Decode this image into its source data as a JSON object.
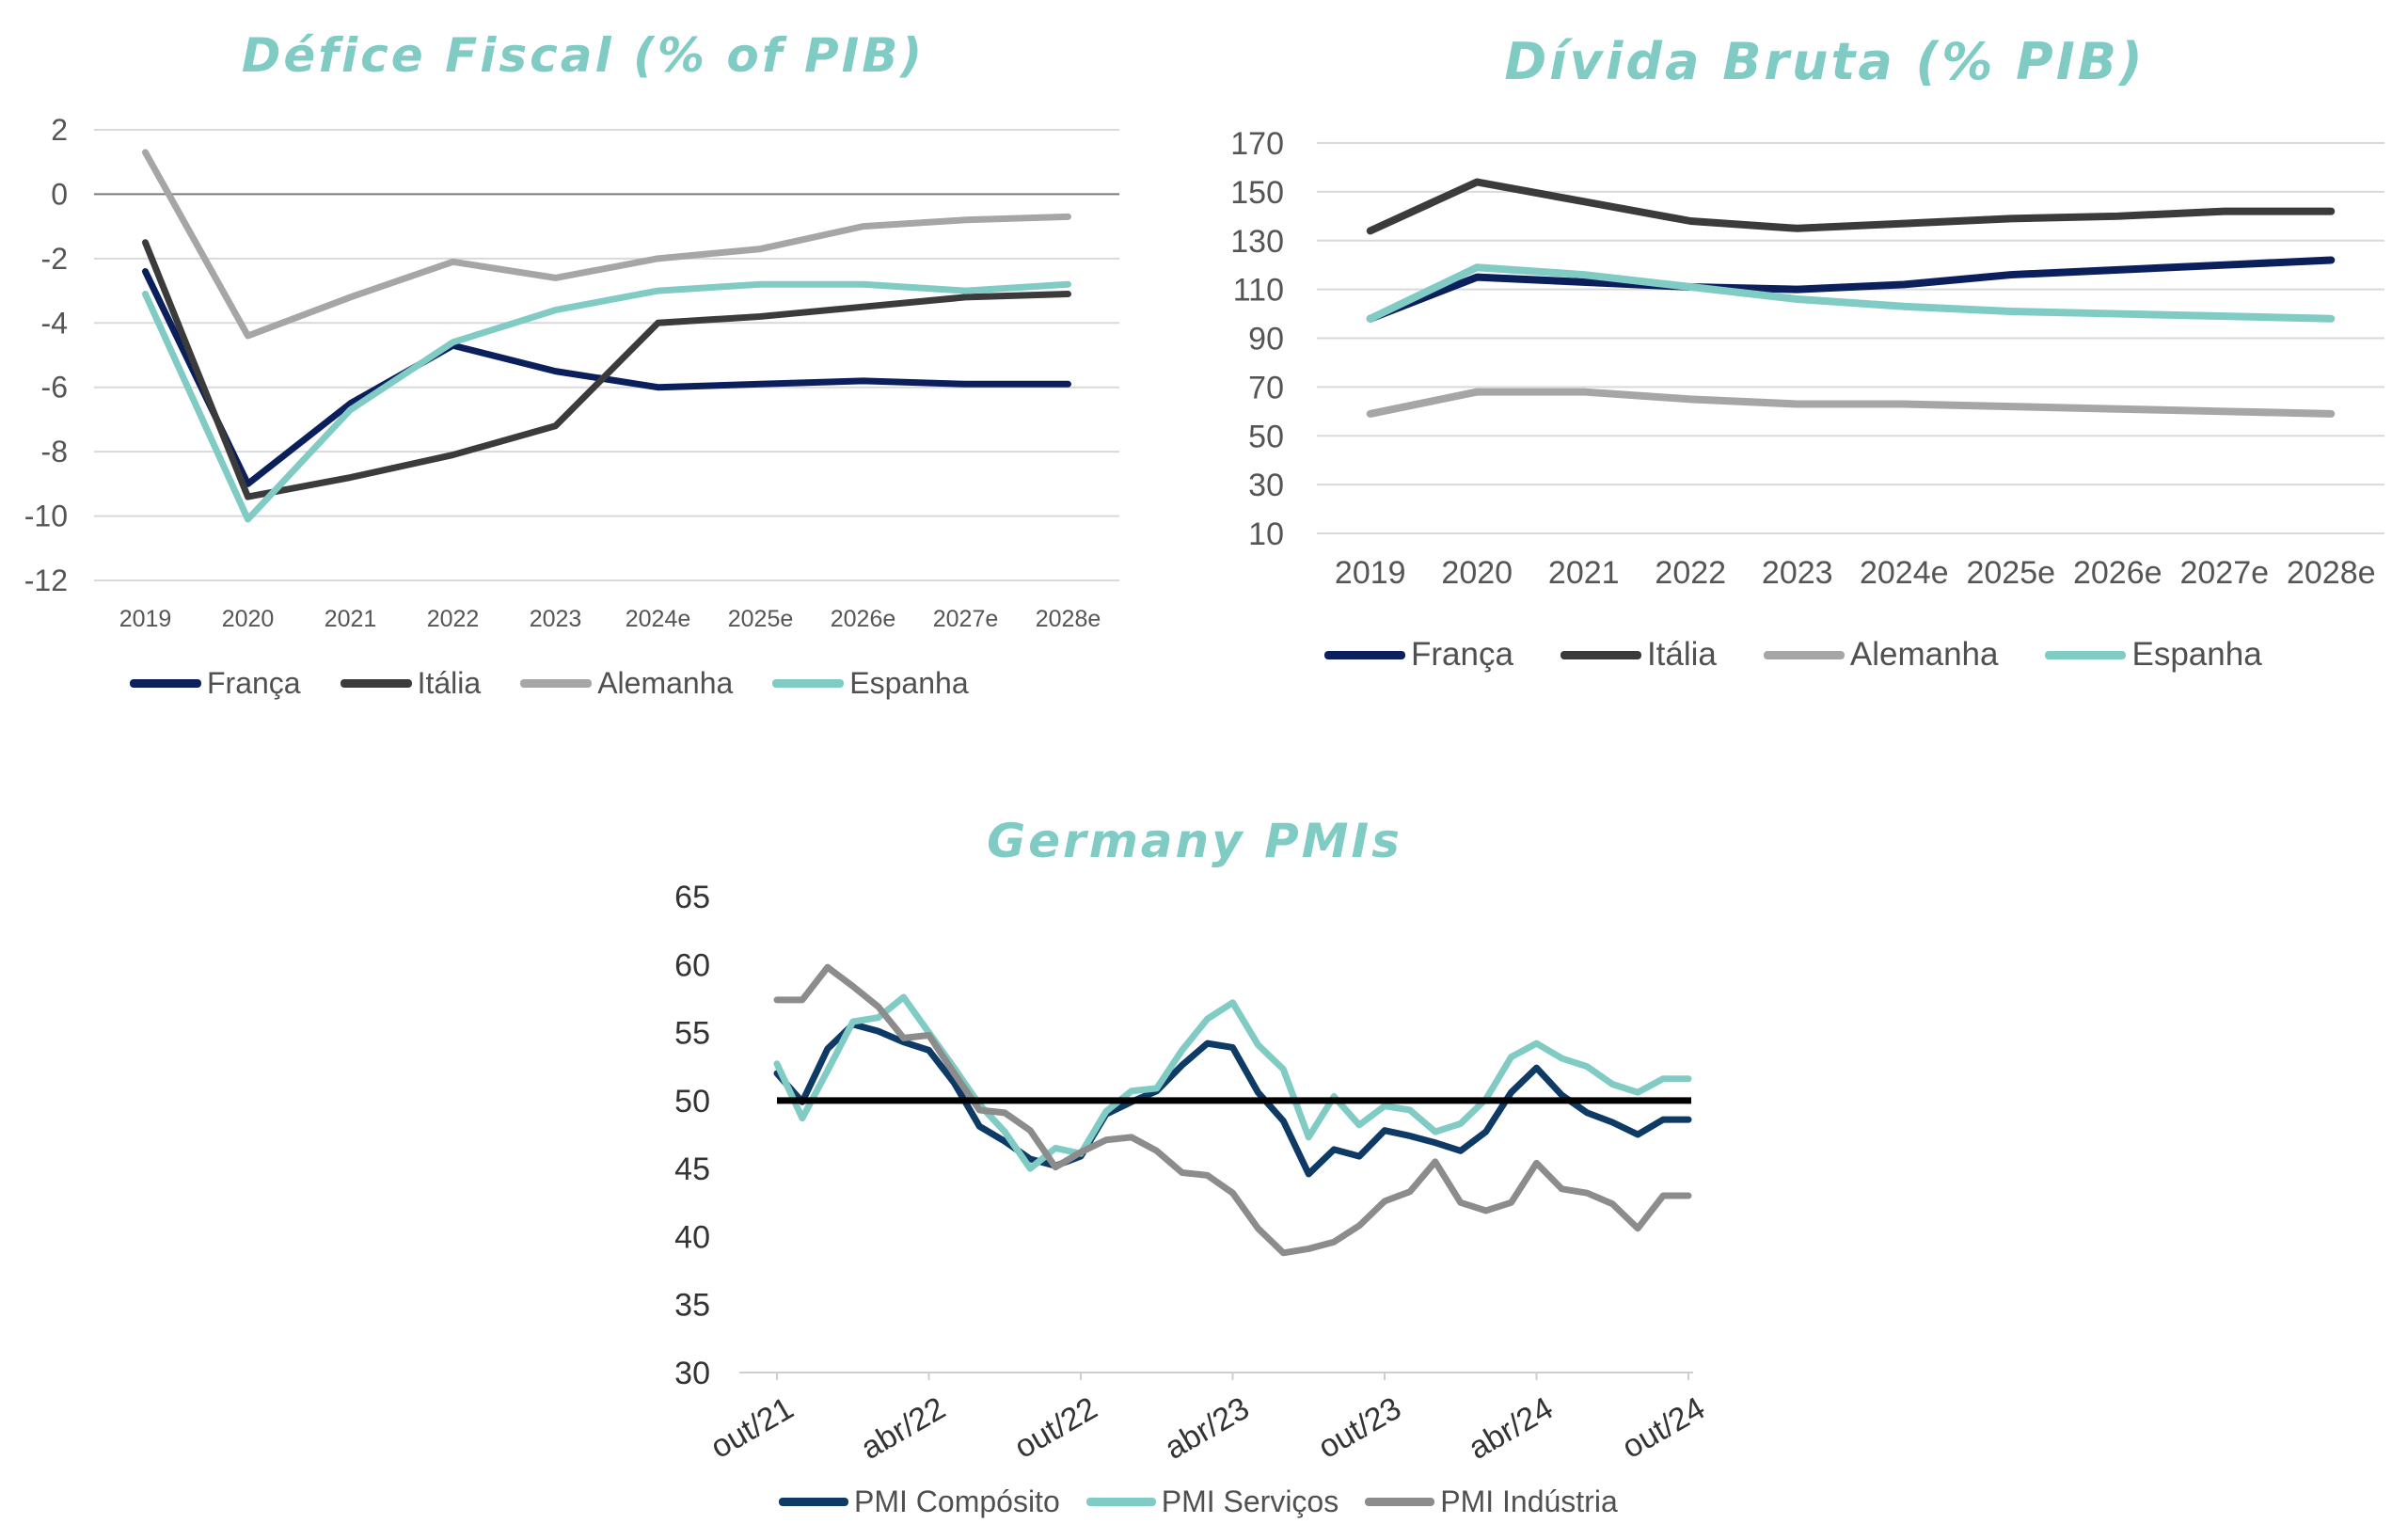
{
  "chart_data": [
    {
      "type": "line",
      "title": "Défice Fiscal (% of PIB)",
      "categories": [
        "2019",
        "2020",
        "2021",
        "2022",
        "2023",
        "2024e",
        "2025e",
        "2026e",
        "2027e",
        "2028e"
      ],
      "ylim": [
        -12,
        2
      ],
      "yticks": [
        2,
        0,
        -2,
        -4,
        -6,
        -8,
        -10,
        -12
      ],
      "grid": true,
      "legend_position": "bottom",
      "series": [
        {
          "name": "França",
          "color": "#0b1f5c",
          "values": [
            -2.4,
            -9.0,
            -6.5,
            -4.7,
            -5.5,
            -6.0,
            -5.9,
            -5.8,
            -5.9,
            -5.9
          ]
        },
        {
          "name": "Itália",
          "color": "#3b3b3b",
          "values": [
            -1.5,
            -9.4,
            -8.8,
            -8.1,
            -7.2,
            -4.0,
            -3.8,
            -3.5,
            -3.2,
            -3.1
          ]
        },
        {
          "name": "Alemanha",
          "color": "#a6a6a6",
          "values": [
            1.3,
            -4.4,
            -3.2,
            -2.1,
            -2.6,
            -2.0,
            -1.7,
            -1.0,
            -0.8,
            -0.7
          ]
        },
        {
          "name": "Espanha",
          "color": "#80cbc4",
          "values": [
            -3.1,
            -10.1,
            -6.7,
            -4.6,
            -3.6,
            -3.0,
            -2.8,
            -2.8,
            -3.0,
            -2.8
          ]
        }
      ]
    },
    {
      "type": "line",
      "title": "Dívida Bruta (% PIB)",
      "categories": [
        "2019",
        "2020",
        "2021",
        "2022",
        "2023",
        "2024e",
        "2025e",
        "2026e",
        "2027e",
        "2028e"
      ],
      "ylim": [
        10,
        170
      ],
      "yticks": [
        170,
        150,
        130,
        110,
        90,
        70,
        50,
        30,
        10
      ],
      "grid": true,
      "legend_position": "bottom",
      "series": [
        {
          "name": "França",
          "color": "#0b1f5c",
          "values": [
            98,
            115,
            113,
            111,
            110,
            112,
            116,
            118,
            120,
            122
          ]
        },
        {
          "name": "Itália",
          "color": "#3b3b3b",
          "values": [
            134,
            154,
            146,
            138,
            135,
            137,
            139,
            140,
            142,
            142
          ]
        },
        {
          "name": "Alemanha",
          "color": "#a6a6a6",
          "values": [
            59,
            68,
            68,
            65,
            63,
            63,
            62,
            61,
            60,
            59
          ]
        },
        {
          "name": "Espanha",
          "color": "#80cbc4",
          "values": [
            98,
            119,
            116,
            111,
            106,
            103,
            101,
            100,
            99,
            98
          ]
        }
      ]
    },
    {
      "type": "line",
      "title": "Germany PMIs",
      "x": [
        "out/21",
        "nov/21",
        "dez/21",
        "jan/22",
        "fev/22",
        "mar/22",
        "abr/22",
        "mai/22",
        "jun/22",
        "jul/22",
        "ago/22",
        "set/22",
        "out/22",
        "nov/22",
        "dez/22",
        "jan/23",
        "fev/23",
        "mar/23",
        "abr/23",
        "mai/23",
        "jun/23",
        "jul/23",
        "ago/23",
        "set/23",
        "out/23",
        "nov/23",
        "dez/23",
        "jan/24",
        "fev/24",
        "mar/24",
        "abr/24",
        "mai/24",
        "jun/24",
        "jul/24",
        "ago/24",
        "set/24",
        "out/24"
      ],
      "xticks": [
        "out/21",
        "abr/22",
        "out/22",
        "abr/23",
        "out/23",
        "abr/24",
        "out/24"
      ],
      "ylim": [
        30,
        65
      ],
      "yticks": [
        65,
        60,
        55,
        50,
        45,
        40,
        35,
        30
      ],
      "grid": false,
      "reference_line": 50,
      "legend_position": "bottom",
      "series": [
        {
          "name": "PMI Compósito",
          "color": "#0d3b66",
          "values": [
            52.0,
            49.9,
            53.8,
            55.6,
            55.1,
            54.3,
            53.7,
            51.3,
            48.1,
            47.0,
            45.7,
            45.2,
            45.9,
            49.0,
            49.9,
            50.7,
            52.6,
            54.2,
            53.9,
            50.6,
            48.5,
            44.6,
            46.4,
            45.9,
            47.8,
            47.4,
            46.9,
            46.3,
            47.7,
            50.6,
            52.4,
            50.4,
            49.1,
            48.4,
            47.5,
            48.6,
            48.6
          ]
        },
        {
          "name": "PMI Serviços",
          "color": "#80cbc4",
          "values": [
            52.7,
            48.7,
            52.2,
            55.8,
            56.1,
            57.6,
            55.0,
            52.4,
            49.7,
            47.7,
            45.0,
            46.5,
            46.1,
            49.2,
            50.7,
            50.9,
            53.7,
            56.0,
            57.2,
            54.1,
            52.3,
            47.3,
            50.3,
            48.2,
            49.6,
            49.3,
            47.7,
            48.3,
            50.1,
            53.2,
            54.2,
            53.1,
            52.5,
            51.2,
            50.6,
            51.6,
            51.6
          ]
        },
        {
          "name": "PMI Indústria",
          "color": "#8c8c8c",
          "values": [
            57.4,
            57.4,
            59.8,
            58.4,
            56.9,
            54.6,
            54.8,
            52.0,
            49.3,
            49.1,
            47.8,
            45.1,
            46.2,
            47.1,
            47.3,
            46.3,
            44.7,
            44.5,
            43.2,
            40.6,
            38.8,
            39.1,
            39.6,
            40.8,
            42.6,
            43.3,
            45.5,
            42.5,
            41.9,
            42.5,
            45.4,
            43.5,
            43.2,
            42.4,
            40.6,
            43.0,
            43.0
          ]
        }
      ]
    }
  ]
}
